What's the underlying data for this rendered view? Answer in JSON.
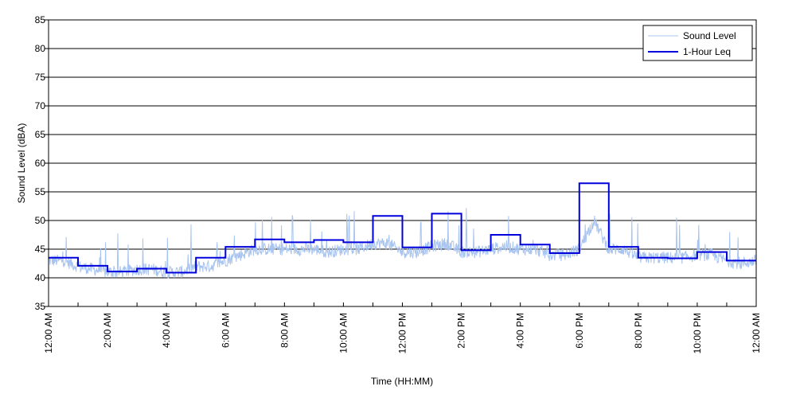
{
  "chart_data": {
    "type": "line",
    "xlabel": "Time (HH:MM)",
    "ylabel": "Sound Level (dBA)",
    "xlim_hours": [
      0,
      24
    ],
    "ylim": [
      35,
      85
    ],
    "y_ticks": [
      35,
      40,
      45,
      50,
      55,
      60,
      65,
      70,
      75,
      80,
      85
    ],
    "grid": "horizontal",
    "x_tick_hours": [
      0,
      2,
      4,
      6,
      8,
      10,
      12,
      14,
      16,
      18,
      20,
      22,
      24
    ],
    "x_tick_labels": [
      "12:00 AM",
      "2:00 AM",
      "4:00 AM",
      "6:00 AM",
      "8:00 AM",
      "10:00 AM",
      "12:00 PM",
      "2:00 PM",
      "4:00 PM",
      "6:00 PM",
      "8:00 PM",
      "10:00 PM",
      "12:00 AM"
    ],
    "legend_position": "top-right",
    "colors": {
      "sound_level": "#a8c4f0",
      "leq": "#0000dd"
    },
    "series": [
      {
        "name": "Sound Level",
        "x_hours": [
          0,
          0.5,
          1,
          1.5,
          2,
          2.5,
          3,
          3.5,
          4,
          4.5,
          5,
          5.5,
          6,
          6.5,
          7,
          7.5,
          8,
          8.5,
          9,
          9.5,
          10,
          10.5,
          11,
          11.5,
          12,
          12.5,
          13,
          13.5,
          14,
          14.5,
          15,
          15.5,
          16,
          16.5,
          17,
          17.5,
          18,
          18.5,
          19,
          19.5,
          20,
          20.5,
          21,
          21.5,
          22,
          22.5,
          23,
          23.5,
          24
        ],
        "values": [
          43,
          43,
          42,
          41.5,
          41,
          41,
          41.5,
          41.5,
          41,
          41,
          42,
          42,
          43,
          44,
          45,
          45,
          45,
          45,
          45,
          44.5,
          45,
          45,
          46,
          46,
          44.5,
          44.5,
          45.5,
          46,
          44.5,
          44.5,
          45,
          45.5,
          45,
          45,
          44,
          44,
          45,
          50,
          45,
          45,
          43.5,
          43.5,
          43.5,
          43.5,
          44,
          44,
          43,
          42.5,
          43
        ]
      },
      {
        "name": "1-Hour Leq",
        "start_hours": [
          0,
          1,
          2,
          3,
          4,
          5,
          6,
          7,
          8,
          9,
          10,
          11,
          12,
          13,
          14,
          15,
          16,
          17,
          18,
          19,
          20,
          21,
          22,
          23
        ],
        "values": [
          43.5,
          42.1,
          41.1,
          41.6,
          40.9,
          43.5,
          45.4,
          46.7,
          46.2,
          46.6,
          46.2,
          50.8,
          45.3,
          51.2,
          44.8,
          47.5,
          45.8,
          44.3,
          56.5,
          45.4,
          43.5,
          43.4,
          44.5,
          43.0
        ]
      }
    ]
  }
}
